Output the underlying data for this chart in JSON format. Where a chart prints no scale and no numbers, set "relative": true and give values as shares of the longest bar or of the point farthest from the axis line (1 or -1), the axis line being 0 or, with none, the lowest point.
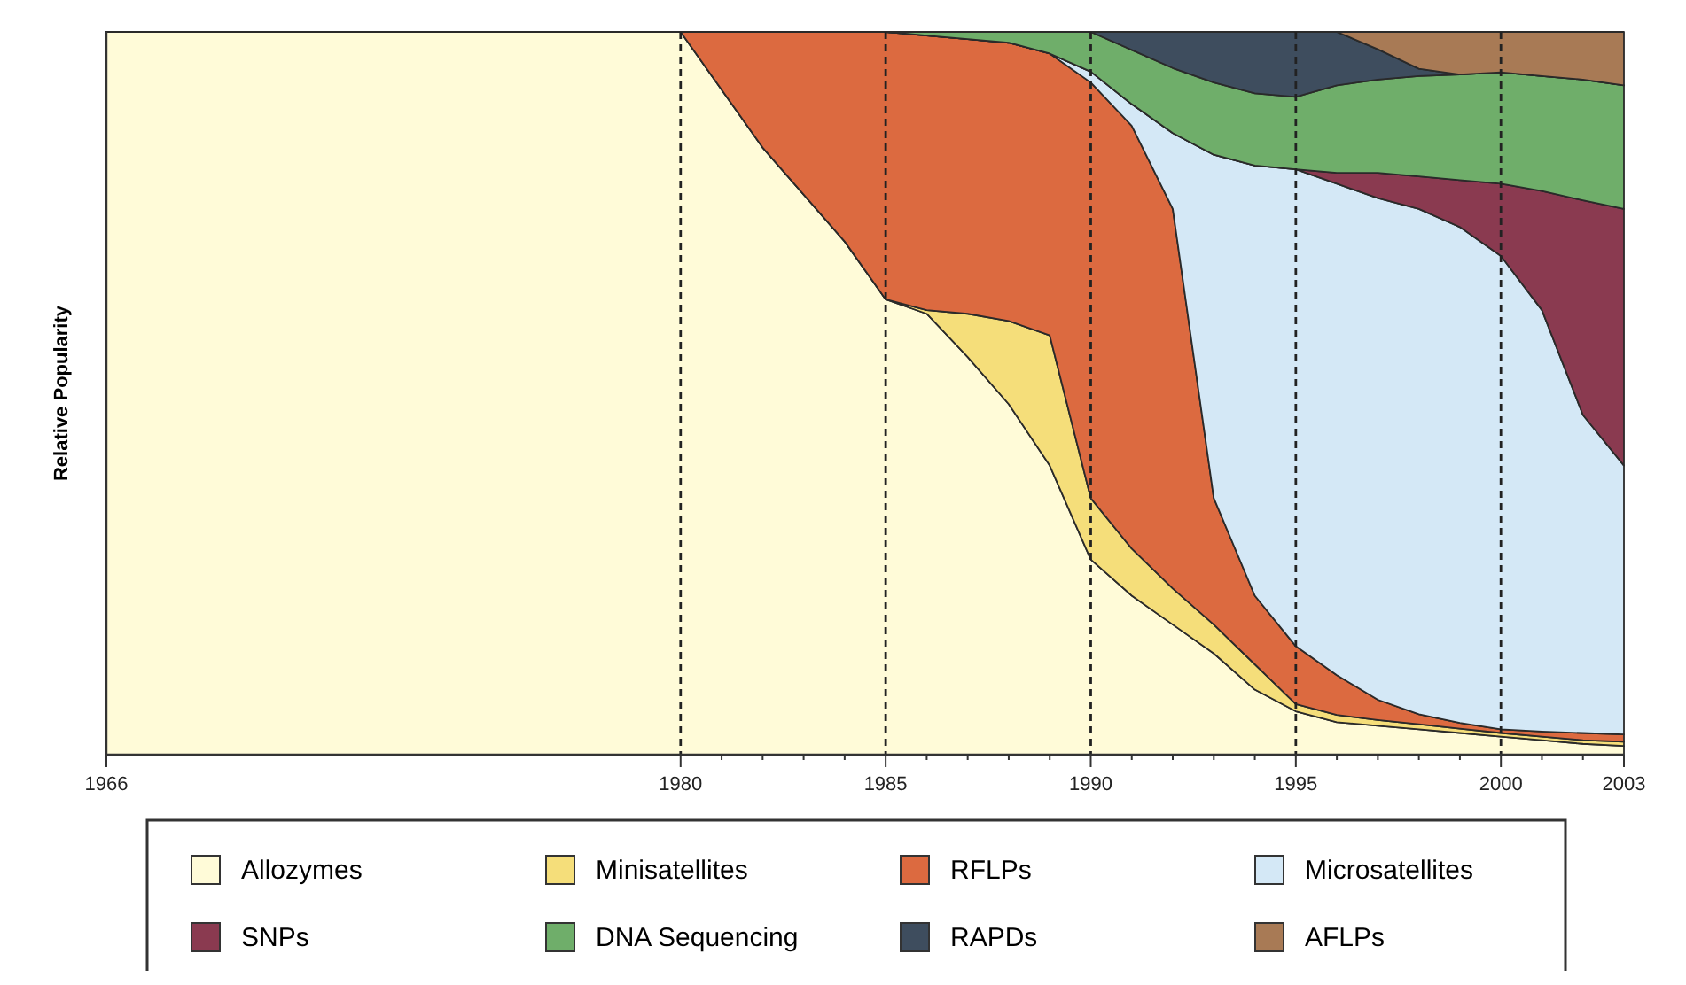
{
  "chart_data": {
    "type": "area",
    "stacked": true,
    "relative": true,
    "ylabel": "Relative Popularity",
    "legend": "bottom",
    "x": [
      1966,
      1980,
      1982,
      1984,
      1985,
      1986,
      1987,
      1988,
      1989,
      1990,
      1991,
      1992,
      1993,
      1994,
      1995,
      1996,
      1997,
      1998,
      1999,
      2000,
      2001,
      2002,
      2003
    ],
    "xlim": [
      1966,
      2003
    ],
    "xticks": [
      1966,
      1980,
      {
        "value": 1981,
        "label": null
      },
      {
        "value": 1982,
        "label": null
      },
      {
        "value": 1983,
        "label": null
      },
      {
        "value": 1984,
        "label": null
      },
      1985,
      {
        "value": 1986,
        "label": null
      },
      {
        "value": 1987,
        "label": null
      },
      {
        "value": 1988,
        "label": null
      },
      {
        "value": 1989,
        "label": null
      },
      1990,
      {
        "value": 1991,
        "label": null
      },
      {
        "value": 1992,
        "label": null
      },
      {
        "value": 1993,
        "label": null
      },
      {
        "value": 1994,
        "label": null
      },
      1995,
      {
        "value": 1996,
        "label": null
      },
      {
        "value": 1997,
        "label": null
      },
      {
        "value": 1998,
        "label": null
      },
      {
        "value": 1999,
        "label": null
      },
      2000,
      {
        "value": 2001,
        "label": null
      },
      {
        "value": 2002,
        "label": null
      },
      2003
    ],
    "series": [
      {
        "name": "Allozymes",
        "color": "#fffbd8",
        "values": [
          1,
          1,
          0.84,
          0.71,
          0.63,
          0.61,
          0.55,
          0.485,
          0.4,
          0.27,
          0.22,
          0.18,
          0.14,
          0.09,
          0.06,
          0.045,
          0.04,
          0.035,
          0.03,
          0.025,
          0.02,
          0.015,
          0.012
        ]
      },
      {
        "name": "Minisatellites",
        "color": "#f5de7a",
        "values": [
          0,
          0,
          0,
          0,
          0,
          0.005,
          0.06,
          0.115,
          0.18,
          0.085,
          0.065,
          0.05,
          0.04,
          0.035,
          0.01,
          0.01,
          0.008,
          0.007,
          0.006,
          0.005,
          0.005,
          0.005,
          0.006
        ]
      },
      {
        "name": "RFLPs",
        "color": "#dc6a40",
        "values": [
          0,
          0,
          0.16,
          0.29,
          0.37,
          0.38,
          0.38,
          0.385,
          0.39,
          0.575,
          0.585,
          0.525,
          0.175,
          0.095,
          0.08,
          0.055,
          0.028,
          0.014,
          0.008,
          0.005,
          0.007,
          0.01,
          0.01
        ]
      },
      {
        "name": "Microsatellites",
        "color": "#d4e8f6",
        "values": [
          0,
          0,
          0,
          0,
          0,
          0,
          0,
          0,
          0,
          0.015,
          0.03,
          0.105,
          0.475,
          0.595,
          0.66,
          0.68,
          0.694,
          0.699,
          0.686,
          0.655,
          0.583,
          0.44,
          0.372
        ]
      },
      {
        "name": "SNPs",
        "color": "#8a3a50",
        "values": [
          0,
          0,
          0,
          0,
          0,
          0,
          0,
          0,
          0,
          0,
          0,
          0,
          0,
          0,
          0,
          0.015,
          0.035,
          0.045,
          0.065,
          0.1,
          0.165,
          0.297,
          0.355
        ]
      },
      {
        "name": "DNA Sequencing",
        "color": "#6fae6a",
        "values": [
          0,
          0,
          0,
          0,
          0,
          0.005,
          0.01,
          0.015,
          0.03,
          0.055,
          0.075,
          0.09,
          0.1,
          0.1,
          0.1,
          0.121,
          0.129,
          0.139,
          0.146,
          0.154,
          0.159,
          0.167,
          0.171
        ]
      },
      {
        "name": "RAPDs",
        "color": "#3e4d5e",
        "values": [
          0,
          0,
          0,
          0,
          0,
          0,
          0,
          0,
          0,
          0,
          0.025,
          0.05,
          0.07,
          0.085,
          0.09,
          0.074,
          0.042,
          0.01,
          0,
          0,
          0,
          0,
          0
        ]
      },
      {
        "name": "AFLPs",
        "color": "#a87a55",
        "values": [
          0,
          0,
          0,
          0,
          0,
          0,
          0,
          0,
          0,
          0,
          0,
          0,
          0,
          0,
          0,
          0,
          0.024,
          0.051,
          0.059,
          0.056,
          0.061,
          0.066,
          0.074
        ]
      }
    ],
    "ref_lines": [
      {
        "axis": "x",
        "value": 1980,
        "line_style": "dashed"
      },
      {
        "axis": "x",
        "value": 1985,
        "line_style": "dashed"
      },
      {
        "axis": "x",
        "value": 1990,
        "line_style": "dashed"
      },
      {
        "axis": "x",
        "value": 1995,
        "line_style": "dashed"
      },
      {
        "axis": "x",
        "value": 2000,
        "line_style": "dashed"
      }
    ]
  }
}
